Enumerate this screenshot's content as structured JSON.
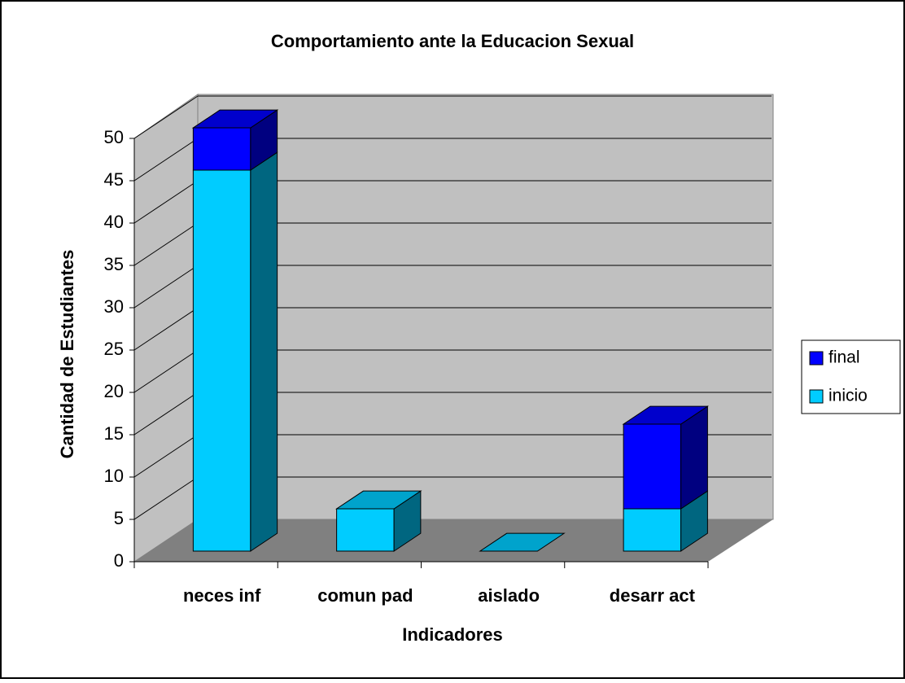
{
  "chart_data": {
    "type": "bar3d_stacked",
    "title": "Comportamiento ante la Educacion Sexual",
    "x_label": "Indicadores",
    "y_label": "Cantidad de Estudiantes",
    "categories": [
      "neces inf",
      "comun pad",
      "aislado",
      "desarr act"
    ],
    "series": [
      {
        "name": "inicio",
        "color": "#00ccff",
        "values": [
          45,
          5,
          0,
          5
        ]
      },
      {
        "name": "final",
        "color": "#0000ff",
        "values": [
          5,
          0,
          0,
          10
        ]
      }
    ],
    "ylim": [
      0,
      50
    ],
    "yticks": [
      0,
      5,
      10,
      15,
      20,
      25,
      30,
      35,
      40,
      45,
      50
    ],
    "grid": true,
    "legend": "right"
  }
}
